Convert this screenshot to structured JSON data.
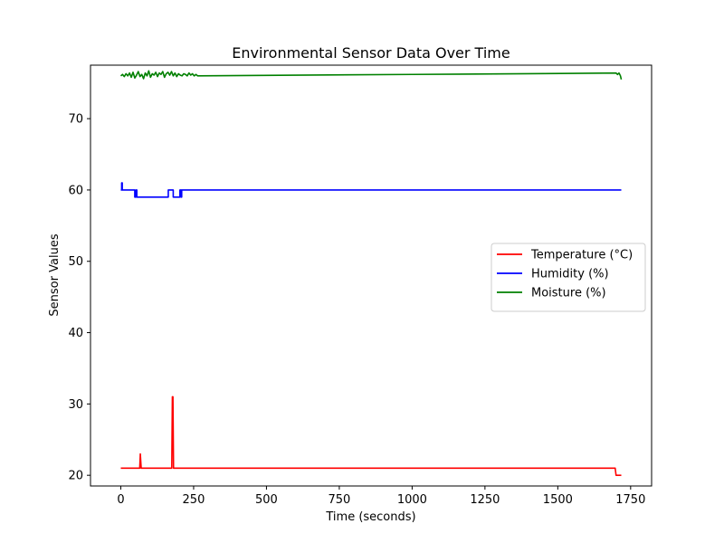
{
  "chart_data": {
    "type": "line",
    "title": "Environmental Sensor Data Over Time",
    "xlabel": "Time (seconds)",
    "ylabel": "Sensor Values",
    "xlim": [
      -104,
      1822
    ],
    "ylim": [
      18.5,
      77.5
    ],
    "xticks": [
      0,
      250,
      500,
      750,
      1000,
      1250,
      1500,
      1750
    ],
    "yticks": [
      20,
      30,
      40,
      50,
      60,
      70
    ],
    "grid": false,
    "legend_position": "center-right",
    "series": [
      {
        "name": "Temperature (°C)",
        "color": "#ff0000",
        "x": [
          0,
          60,
          65,
          67,
          70,
          170,
          175,
          177,
          179,
          181,
          183,
          400,
          800,
          1200,
          1600,
          1697,
          1700,
          1718
        ],
        "y": [
          21,
          21,
          21,
          23,
          21,
          21,
          21,
          31,
          31,
          21,
          21,
          21,
          21,
          21,
          21,
          21,
          20,
          20
        ]
      },
      {
        "name": "Humidity (%)",
        "color": "#0000ff",
        "x": [
          0,
          3,
          5,
          45,
          48,
          52,
          55,
          60,
          160,
          163,
          177,
          180,
          200,
          203,
          205,
          207,
          209,
          211,
          220,
          600,
          1000,
          1400,
          1718
        ],
        "y": [
          60,
          61,
          60,
          60,
          59,
          60,
          59,
          59,
          59,
          60,
          60,
          59,
          59,
          60,
          60,
          59,
          60,
          60,
          60,
          60,
          60,
          60,
          60
        ],
        "step": true
      },
      {
        "name": "Moisture (%)",
        "color": "#008000",
        "x": [
          0,
          6,
          12,
          18,
          24,
          30,
          36,
          42,
          48,
          54,
          60,
          66,
          72,
          78,
          84,
          90,
          96,
          102,
          108,
          114,
          120,
          126,
          132,
          138,
          144,
          150,
          156,
          162,
          168,
          174,
          180,
          186,
          192,
          198,
          204,
          210,
          216,
          222,
          228,
          234,
          240,
          246,
          252,
          258,
          264,
          600,
          1000,
          1400,
          1700,
          1705,
          1710,
          1715,
          1718
        ],
        "y": [
          76.0,
          76.2,
          75.9,
          76.3,
          76.0,
          76.4,
          75.8,
          76.5,
          75.7,
          76.1,
          76.6,
          75.9,
          76.2,
          75.6,
          76.4,
          76.0,
          76.7,
          75.8,
          76.3,
          76.1,
          76.5,
          75.9,
          76.4,
          76.2,
          76.6,
          75.8,
          76.3,
          76.5,
          76.1,
          76.6,
          76.0,
          76.4,
          75.9,
          76.3,
          76.1,
          76.0,
          76.3,
          76.2,
          76.0,
          76.4,
          76.1,
          76.3,
          76.0,
          76.2,
          76.0,
          76.1,
          76.2,
          76.3,
          76.4,
          76.2,
          76.4,
          76.0,
          75.5
        ]
      }
    ]
  }
}
